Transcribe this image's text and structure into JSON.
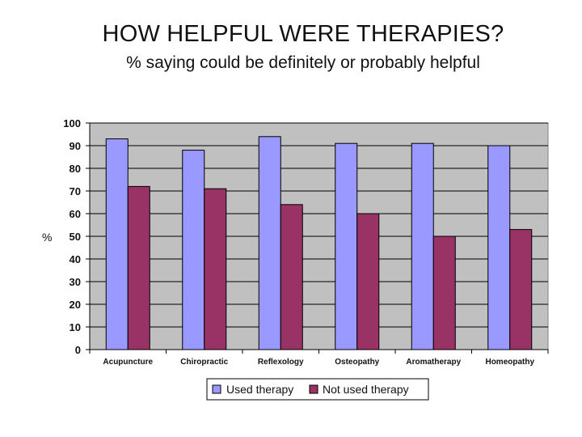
{
  "chart_data": {
    "type": "bar",
    "title": "HOW HELPFUL WERE THERAPIES?",
    "subtitle": "% saying could be definitely or probably helpful",
    "ylabel": "%",
    "xlabel": "",
    "ylim": [
      0,
      100
    ],
    "yticks": [
      0,
      10,
      20,
      30,
      40,
      50,
      60,
      70,
      80,
      90,
      100
    ],
    "grid": true,
    "legend_position": "bottom",
    "categories": [
      "Acupuncture",
      "Chiropractic",
      "Reflexology",
      "Osteopathy",
      "Aromatherapy",
      "Homeopathy"
    ],
    "series": [
      {
        "name": "Used therapy",
        "color": "#9999ff",
        "values": [
          93,
          88,
          94,
          91,
          91,
          90
        ]
      },
      {
        "name": "Not used therapy",
        "color": "#993366",
        "values": [
          72,
          71,
          64,
          60,
          50,
          53
        ]
      }
    ],
    "plot_background": "#c0c0c0"
  }
}
